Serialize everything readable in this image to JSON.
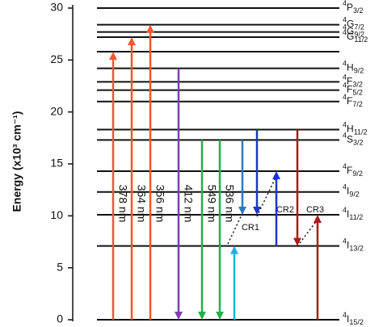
{
  "chart_data": {
    "type": "energy_levels",
    "y_label": "Energy (x10³ cm⁻¹)",
    "ylim": [
      0,
      30
    ],
    "yticks": [
      0,
      5,
      10,
      15,
      20,
      25,
      30
    ],
    "levels": [
      {
        "sup": "4",
        "term": "P",
        "sub": "3/2",
        "energy": 30
      },
      {
        "sup": "4",
        "term": "G",
        "sub": "7/2",
        "energy": 28.4
      },
      {
        "sup": "4",
        "term": "G",
        "sub": "9/2",
        "energy": 27.7
      },
      {
        "sup": "4",
        "term": "G",
        "sub": "11/2",
        "energy": 27.2
      },
      {
        "energy": 25.8
      },
      {
        "sup": "4",
        "term": "H",
        "sub": "9/2",
        "energy": 24.2
      },
      {
        "sup": "4",
        "term": "F",
        "sub": "3/2",
        "energy": 22.9
      },
      {
        "sup": "4",
        "term": "F",
        "sub": "5/2",
        "energy": 22.1
      },
      {
        "sup": "4",
        "term": "F",
        "sub": "7/2",
        "energy": 21.0
      },
      {
        "sup": "4",
        "term": "H",
        "sub": "11/2",
        "energy": 18.3
      },
      {
        "sup": "4",
        "term": "S",
        "sub": "3/2",
        "energy": 17.3
      },
      {
        "sup": "4",
        "term": "F",
        "sub": "9/2",
        "energy": 14.3
      },
      {
        "sup": "4",
        "term": "I",
        "sub": "9/2",
        "energy": 12.3
      },
      {
        "sup": "4",
        "term": "I",
        "sub": "11/2",
        "energy": 10.1
      },
      {
        "sup": "4",
        "term": "I",
        "sub": "13/2",
        "energy": 7.1
      },
      {
        "sup": "4",
        "term": "I",
        "sub": "15/2",
        "energy": 0
      }
    ],
    "transitions": [
      {
        "label": "378 nm",
        "color": "#f0582c",
        "from": 0,
        "to": 25.8
      },
      {
        "label": "364 nm",
        "color": "#f0582c",
        "from": 0,
        "to": 27.2
      },
      {
        "label": "356 nm",
        "color": "#f0582c",
        "from": 0,
        "to": 28.4
      },
      {
        "label": "412 nm",
        "color": "#7b3fb0",
        "from": 24.2,
        "to": 0
      },
      {
        "label": "549 nm",
        "color": "#22b04a",
        "from": 17.3,
        "to": 0
      },
      {
        "label": "536 nm",
        "color": "#22b04a",
        "from": 17.3,
        "to": 0
      },
      {
        "color": "#1eaee0",
        "from": 0,
        "to": 7.1
      },
      {
        "color": "#2a7ac0",
        "from": 17.3,
        "to": 10.1
      },
      {
        "color": "#1a35d0",
        "from": 18.3,
        "to": 10.1
      },
      {
        "color": "#1a35d0",
        "from": 7.1,
        "to": 14.3
      },
      {
        "color": "#b01818",
        "from": 18.3,
        "to": 7.1
      },
      {
        "color": "#b01818",
        "from": 0,
        "to": 10.1
      }
    ],
    "processes": [
      "CR1",
      "CR2",
      "CR3"
    ]
  }
}
